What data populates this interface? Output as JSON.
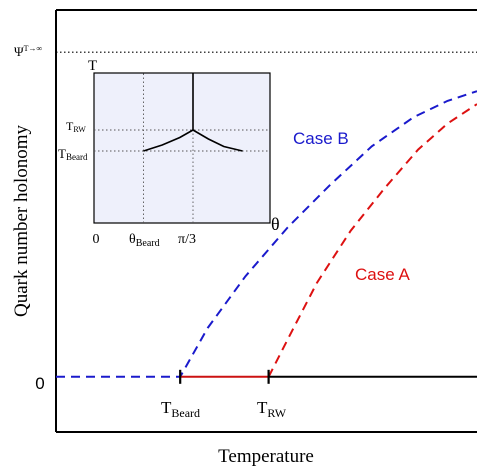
{
  "chart_data": [
    {
      "type": "line",
      "title": "",
      "xlabel": "Temperature",
      "ylabel": "Quark number holonomy",
      "xlim": [
        0,
        1
      ],
      "ylim": [
        -0.17,
        1.13
      ],
      "grid": false,
      "y_tick_labels": [
        {
          "value": 0,
          "label": "0"
        }
      ],
      "x_tick_labels": [
        {
          "value": 0.295,
          "main": "T",
          "sub": "Beard"
        },
        {
          "value": 0.505,
          "main": "T",
          "sub": "RW"
        }
      ],
      "asymptote": {
        "value": 1.0,
        "label_main": "Ψ",
        "label_sup": "T→∞",
        "style": "dotted",
        "color": "#000000"
      },
      "series": [
        {
          "name": "Case B",
          "color": "#1a1acc",
          "style": "dashed",
          "points": [
            [
              0.0,
              0
            ],
            [
              0.295,
              0
            ],
            [
              0.36,
              0.15
            ],
            [
              0.45,
              0.31
            ],
            [
              0.55,
              0.46
            ],
            [
              0.65,
              0.59
            ],
            [
              0.75,
              0.71
            ],
            [
              0.85,
              0.8
            ],
            [
              0.93,
              0.85
            ],
            [
              1.0,
              0.88
            ]
          ]
        },
        {
          "name": "Case A",
          "color": "#dd1111",
          "style": "dashed",
          "points": [
            [
              0.505,
              0
            ],
            [
              0.56,
              0.14
            ],
            [
              0.62,
              0.29
            ],
            [
              0.7,
              0.45
            ],
            [
              0.78,
              0.58
            ],
            [
              0.86,
              0.7
            ],
            [
              0.93,
              0.78
            ],
            [
              1.0,
              0.84
            ]
          ]
        },
        {
          "name": "",
          "color": "#cc1111",
          "style": "solid",
          "points": [
            [
              0.295,
              0
            ],
            [
              0.505,
              0
            ]
          ]
        },
        {
          "name": "",
          "color": "#000000",
          "style": "solid",
          "points": [
            [
              0.505,
              0
            ],
            [
              1.0,
              0
            ]
          ]
        }
      ],
      "annotations": [
        {
          "text": "Case B",
          "color": "#1a1acc"
        },
        {
          "text": "Case A",
          "color": "#dd1111"
        }
      ]
    },
    {
      "type": "line",
      "title": "",
      "xlabel": "θ",
      "ylabel": "T",
      "background": "#eef0fb",
      "xlim": [
        0,
        1.6
      ],
      "ylim": [
        0,
        1
      ],
      "x_tick_labels": [
        {
          "value": 0,
          "main": "0",
          "sub": ""
        },
        {
          "value": 0.45,
          "main": "θ",
          "sub": "Beard"
        },
        {
          "value": 0.9,
          "main": "π/3",
          "sub": ""
        }
      ],
      "y_tick_labels": [
        {
          "value": 0.62,
          "main": "T",
          "sub": "RW"
        },
        {
          "value": 0.48,
          "main": "T",
          "sub": "Beard"
        }
      ],
      "series": [
        {
          "name": "",
          "style": "solid",
          "color": "#000000",
          "points": [
            [
              0.9,
              1.0
            ],
            [
              0.9,
              0.62
            ]
          ]
        },
        {
          "name": "",
          "style": "solid",
          "color": "#000000",
          "points": [
            [
              0.45,
              0.48
            ],
            [
              0.62,
              0.52
            ],
            [
              0.78,
              0.57
            ],
            [
              0.9,
              0.62
            ]
          ]
        },
        {
          "name": "",
          "style": "solid",
          "color": "#000000",
          "points": [
            [
              0.9,
              0.62
            ],
            [
              1.04,
              0.56
            ],
            [
              1.18,
              0.51
            ],
            [
              1.35,
              0.48
            ]
          ]
        },
        {
          "name": "",
          "style": "dotted",
          "color": "#555555",
          "points": [
            [
              0,
              0.62
            ],
            [
              1.6,
              0.62
            ]
          ]
        },
        {
          "name": "",
          "style": "dotted",
          "color": "#555555",
          "points": [
            [
              0,
              0.48
            ],
            [
              1.6,
              0.48
            ]
          ]
        },
        {
          "name": "",
          "style": "dotted",
          "color": "#555555",
          "points": [
            [
              0.45,
              0
            ],
            [
              0.45,
              1.0
            ]
          ]
        },
        {
          "name": "",
          "style": "dotted",
          "color": "#555555",
          "points": [
            [
              0.9,
              0
            ],
            [
              0.9,
              1.0
            ]
          ]
        }
      ]
    }
  ]
}
